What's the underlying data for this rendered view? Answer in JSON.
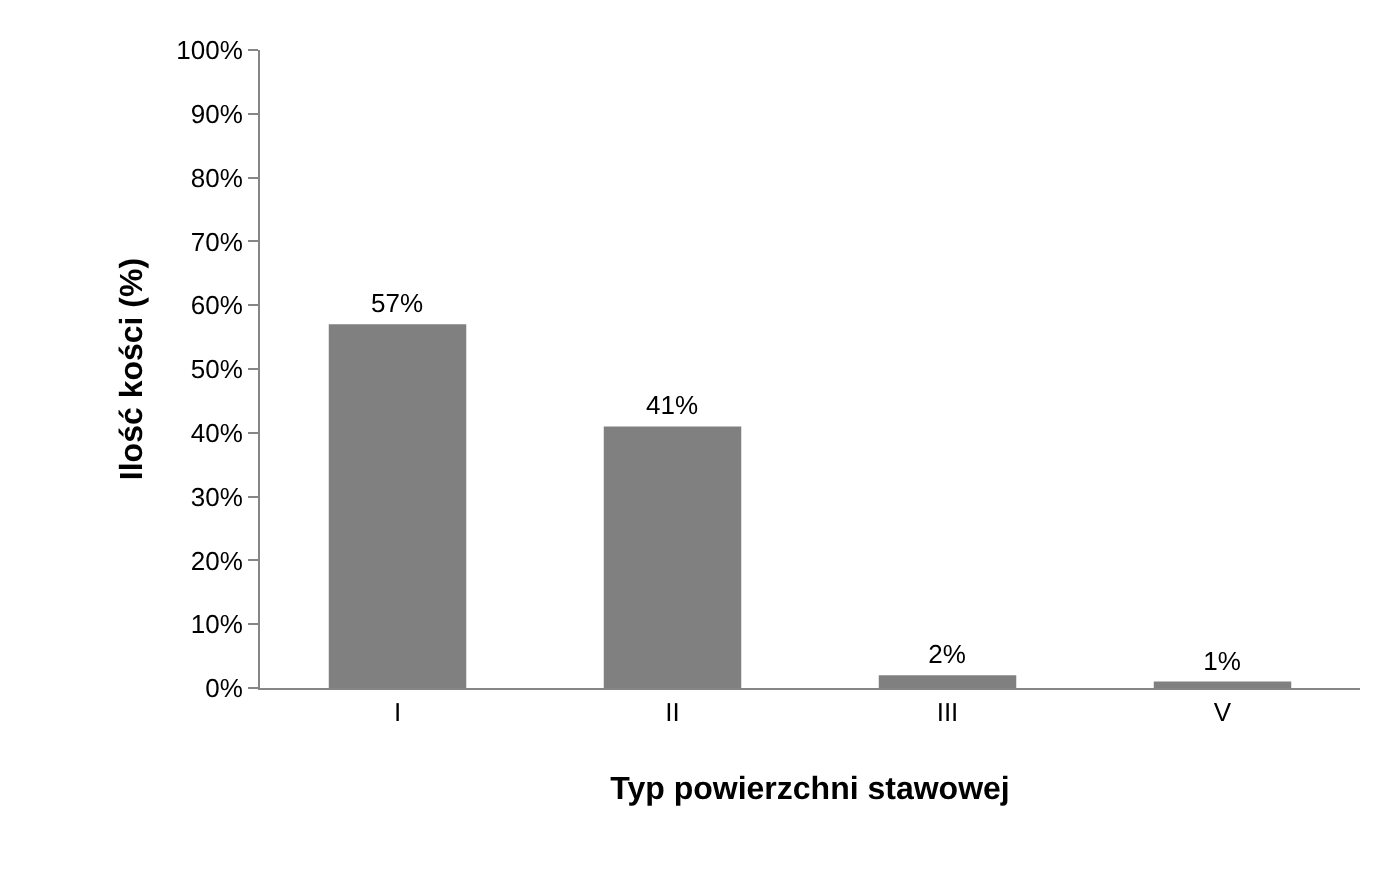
{
  "chart_data": {
    "type": "bar",
    "xlabel": "Typ powierzchni stawowej",
    "ylabel": "Ilość kości (%)",
    "categories": [
      "I",
      "II",
      "III",
      "V"
    ],
    "values": [
      57,
      41,
      2,
      1
    ],
    "value_labels": [
      "57%",
      "41%",
      "2%",
      "1%"
    ],
    "color": "#808080",
    "ylim": [
      0,
      100
    ],
    "yticks": [
      {
        "value": 0,
        "label": "0%"
      },
      {
        "value": 10,
        "label": "10%"
      },
      {
        "value": 20,
        "label": "20%"
      },
      {
        "value": 30,
        "label": "30%"
      },
      {
        "value": 40,
        "label": "40%"
      },
      {
        "value": 50,
        "label": "50%"
      },
      {
        "value": 60,
        "label": "60%"
      },
      {
        "value": 70,
        "label": "70%"
      },
      {
        "value": 80,
        "label": "80%"
      },
      {
        "value": 90,
        "label": "90%"
      },
      {
        "value": 100,
        "label": "100%"
      }
    ],
    "grid": false,
    "legend": false
  }
}
